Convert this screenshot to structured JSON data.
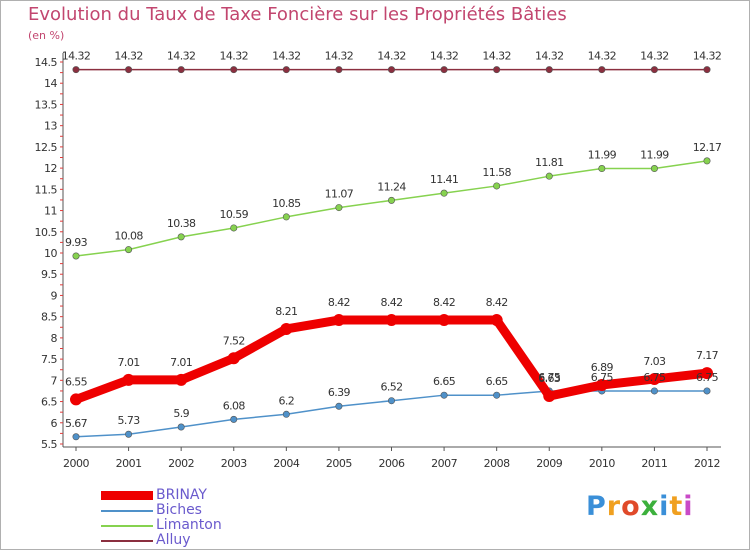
{
  "title": "Evolution du Taux de Taxe Foncière sur les Propriétés Bâties",
  "subtitle": "(en %)",
  "logo": {
    "letters": [
      "P",
      "r",
      "o",
      "x",
      "i",
      "t",
      "i"
    ],
    "colors": [
      "#3a8fd8",
      "#f0a020",
      "#e04a2a",
      "#3cb03c",
      "#3a8fd8",
      "#f0a020",
      "#c94ac7"
    ]
  },
  "chart_data": {
    "type": "line",
    "title": "Evolution du Taux de Taxe Foncière sur les Propriétés Bâties",
    "ylabel": "(en %)",
    "xlabel": "",
    "x": [
      "2000",
      "2001",
      "2002",
      "2003",
      "2004",
      "2005",
      "2006",
      "2007",
      "2008",
      "2009",
      "2010",
      "2011",
      "2012"
    ],
    "ylim": [
      5.5,
      14.5
    ],
    "yticks": [
      "5.5",
      "6",
      "6.5",
      "7",
      "7.5",
      "8",
      "8.5",
      "9",
      "9.5",
      "10",
      "10.5",
      "11",
      "11.5",
      "12",
      "12.5",
      "13",
      "13.5",
      "14",
      "14.5"
    ],
    "grid": false,
    "series": [
      {
        "name": "BRINAY",
        "color": "#ee0000",
        "values": [
          6.55,
          7.01,
          7.01,
          7.52,
          8.21,
          8.42,
          8.42,
          8.42,
          8.42,
          6.63,
          6.89,
          7.03,
          7.17
        ],
        "labels": [
          "6.55",
          "7.01",
          "7.01",
          "7.52",
          "8.21",
          "8.42",
          "8.42",
          "8.42",
          "8.42",
          "6.63",
          "6.89",
          "7.03",
          "7.17"
        ]
      },
      {
        "name": "Biches",
        "color": "#4f91c9",
        "values": [
          5.67,
          5.73,
          5.9,
          6.08,
          6.2,
          6.39,
          6.52,
          6.65,
          6.65,
          6.75,
          6.75,
          6.75,
          6.75
        ],
        "labels": [
          "5.67",
          "5.73",
          "5.9",
          "6.08",
          "6.2",
          "6.39",
          "6.52",
          "6.65",
          "6.65",
          "6.75",
          "6.75",
          "6.75",
          "6.75"
        ]
      },
      {
        "name": "Limanton",
        "color": "#86d24f",
        "values": [
          9.93,
          10.08,
          10.38,
          10.59,
          10.85,
          11.07,
          11.24,
          11.41,
          11.58,
          11.81,
          11.99,
          11.99,
          12.17
        ],
        "labels": [
          "9.93",
          "10.08",
          "10.38",
          "10.59",
          "10.85",
          "11.07",
          "11.24",
          "11.41",
          "11.58",
          "11.81",
          "11.99",
          "11.99",
          "12.17"
        ]
      },
      {
        "name": "Alluy",
        "color": "#8b2f3f",
        "values": [
          14.32,
          14.32,
          14.32,
          14.32,
          14.32,
          14.32,
          14.32,
          14.32,
          14.32,
          14.32,
          14.32,
          14.32,
          14.32
        ],
        "labels": [
          "14.32",
          "14.32",
          "14.32",
          "14.32",
          "14.32",
          "14.32",
          "14.32",
          "14.32",
          "14.32",
          "14.32",
          "14.32",
          "14.32",
          "14.32"
        ]
      }
    ],
    "legend": [
      "BRINAY",
      "Biches",
      "Limanton",
      "Alluy"
    ],
    "legend_position": "bottom-left"
  }
}
